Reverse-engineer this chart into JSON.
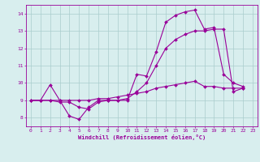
{
  "x": [
    0,
    1,
    2,
    3,
    4,
    5,
    6,
    7,
    8,
    9,
    10,
    11,
    12,
    13,
    14,
    15,
    16,
    17,
    18,
    19,
    20,
    21,
    22,
    23
  ],
  "line1": [
    9.0,
    9.0,
    9.9,
    9.0,
    8.1,
    7.9,
    8.6,
    9.0,
    9.0,
    9.0,
    9.0,
    10.5,
    10.4,
    11.8,
    13.5,
    13.9,
    14.1,
    14.2,
    13.1,
    13.2,
    10.5,
    10.0,
    9.8,
    null
  ],
  "line2": [
    9.0,
    9.0,
    9.0,
    8.9,
    8.9,
    8.6,
    8.5,
    8.9,
    9.0,
    9.0,
    9.1,
    9.5,
    10.0,
    11.0,
    12.0,
    12.5,
    12.8,
    13.0,
    13.0,
    13.1,
    13.1,
    9.5,
    9.7,
    null
  ],
  "line3": [
    9.0,
    9.0,
    9.0,
    9.0,
    9.0,
    9.0,
    9.0,
    9.1,
    9.1,
    9.2,
    9.3,
    9.4,
    9.5,
    9.7,
    9.8,
    9.9,
    10.0,
    10.1,
    9.8,
    9.8,
    9.7,
    9.7,
    9.7,
    null
  ],
  "color": "#990099",
  "bg_color": "#d8eeee",
  "grid_color": "#aacccc",
  "xlabel": "Windchill (Refroidissement éolien,°C)",
  "ylim": [
    7.5,
    14.5
  ],
  "xlim": [
    -0.5,
    23.5
  ],
  "yticks": [
    8,
    9,
    10,
    11,
    12,
    13,
    14
  ],
  "xticks": [
    0,
    1,
    2,
    3,
    4,
    5,
    6,
    7,
    8,
    9,
    10,
    11,
    12,
    13,
    14,
    15,
    16,
    17,
    18,
    19,
    20,
    21,
    22,
    23
  ],
  "tick_fontsize": 4.5,
  "xlabel_fontsize": 5.0,
  "line_width": 0.8,
  "marker_size": 2.0
}
